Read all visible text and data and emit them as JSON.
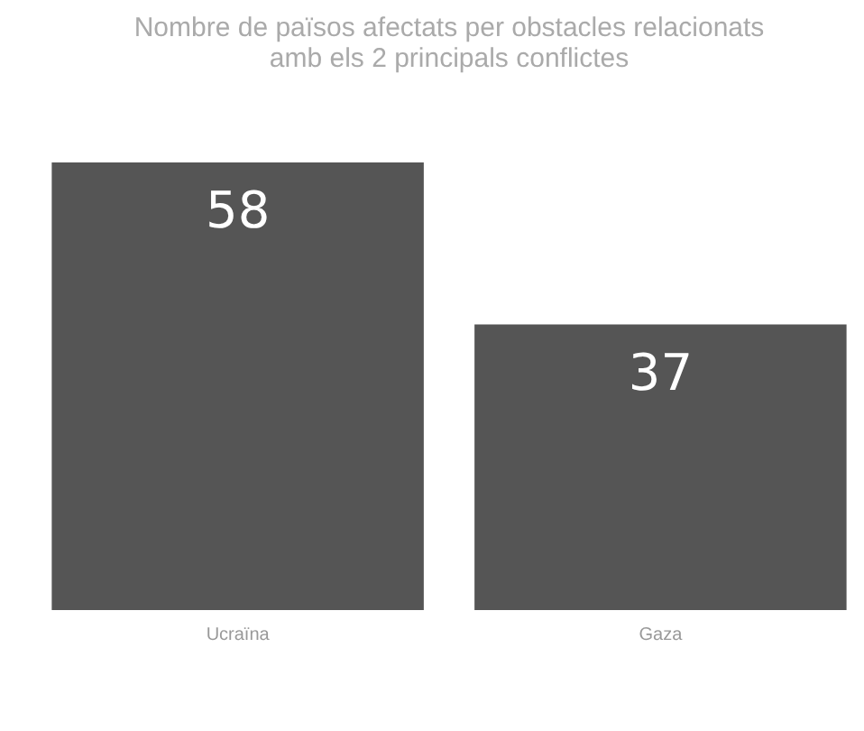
{
  "chart_data": {
    "type": "bar",
    "title": "Nombre de països afectats per obstacles relacionats amb els 2 principals conflictes",
    "categories": [
      "Ucraïna",
      "Gaza"
    ],
    "values": [
      58,
      37
    ],
    "color": "#555555",
    "data_labels": true
  }
}
